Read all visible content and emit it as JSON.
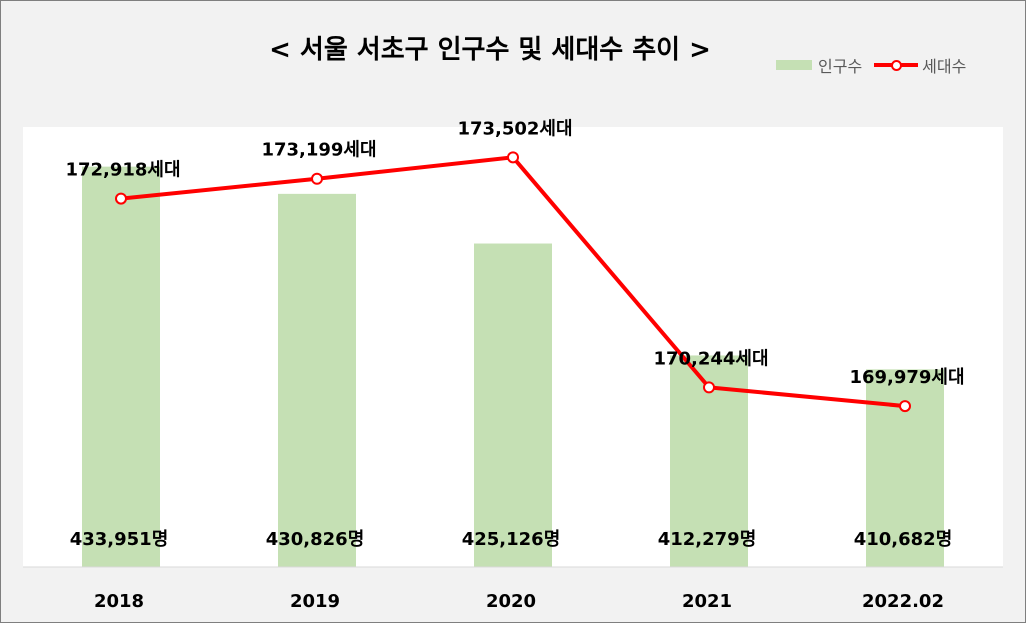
{
  "title": "< 서울 서초구 인구수 및 세대수 추이 >",
  "legend": {
    "population": "인구수",
    "households": "세대수"
  },
  "colors": {
    "bar": "#c5e0b4",
    "line": "#ff0000",
    "background": "#f2f2f2",
    "plot": "#ffffff"
  },
  "chart_data": {
    "type": "bar",
    "title": "< 서울 서초구 인구수 및 세대수 추이 >",
    "categories": [
      "2018",
      "2019",
      "2020",
      "2021",
      "2022.02"
    ],
    "series": [
      {
        "name": "인구수",
        "type": "bar",
        "values": [
          433951,
          430826,
          425126,
          412279,
          410682
        ],
        "labels": [
          "433,951명",
          "430,826명",
          "425,126명",
          "412,279명",
          "410,682명"
        ]
      },
      {
        "name": "세대수",
        "type": "line",
        "values": [
          172918,
          173199,
          173502,
          170244,
          169979
        ],
        "labels": [
          "172,918세대",
          "173,199세대",
          "173,502세대",
          "170,244세대",
          "169,979세대"
        ]
      }
    ],
    "xlabel": "",
    "ylabel": "",
    "grid": false,
    "legend_position": "top-right"
  }
}
